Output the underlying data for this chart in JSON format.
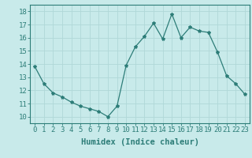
{
  "x": [
    0,
    1,
    2,
    3,
    4,
    5,
    6,
    7,
    8,
    9,
    10,
    11,
    12,
    13,
    14,
    15,
    16,
    17,
    18,
    19,
    20,
    21,
    22,
    23
  ],
  "y": [
    13.8,
    12.5,
    11.8,
    11.5,
    11.1,
    10.8,
    10.6,
    10.4,
    10.0,
    10.8,
    13.9,
    15.3,
    16.1,
    17.1,
    15.9,
    17.8,
    16.0,
    16.8,
    16.5,
    16.4,
    14.9,
    13.1,
    12.5,
    11.7
  ],
  "line_color": "#2d7d78",
  "marker": "*",
  "marker_size": 3,
  "bg_color": "#c8eaea",
  "grid_color": "#b0d8d8",
  "xlabel": "Humidex (Indice chaleur)",
  "xlim": [
    -0.5,
    23.5
  ],
  "ylim": [
    9.5,
    18.5
  ],
  "yticks": [
    10,
    11,
    12,
    13,
    14,
    15,
    16,
    17,
    18
  ],
  "xticks": [
    0,
    1,
    2,
    3,
    4,
    5,
    6,
    7,
    8,
    9,
    10,
    11,
    12,
    13,
    14,
    15,
    16,
    17,
    18,
    19,
    20,
    21,
    22,
    23
  ],
  "tick_color": "#2d7d78",
  "label_color": "#2d7d78",
  "font_size": 7.5
}
